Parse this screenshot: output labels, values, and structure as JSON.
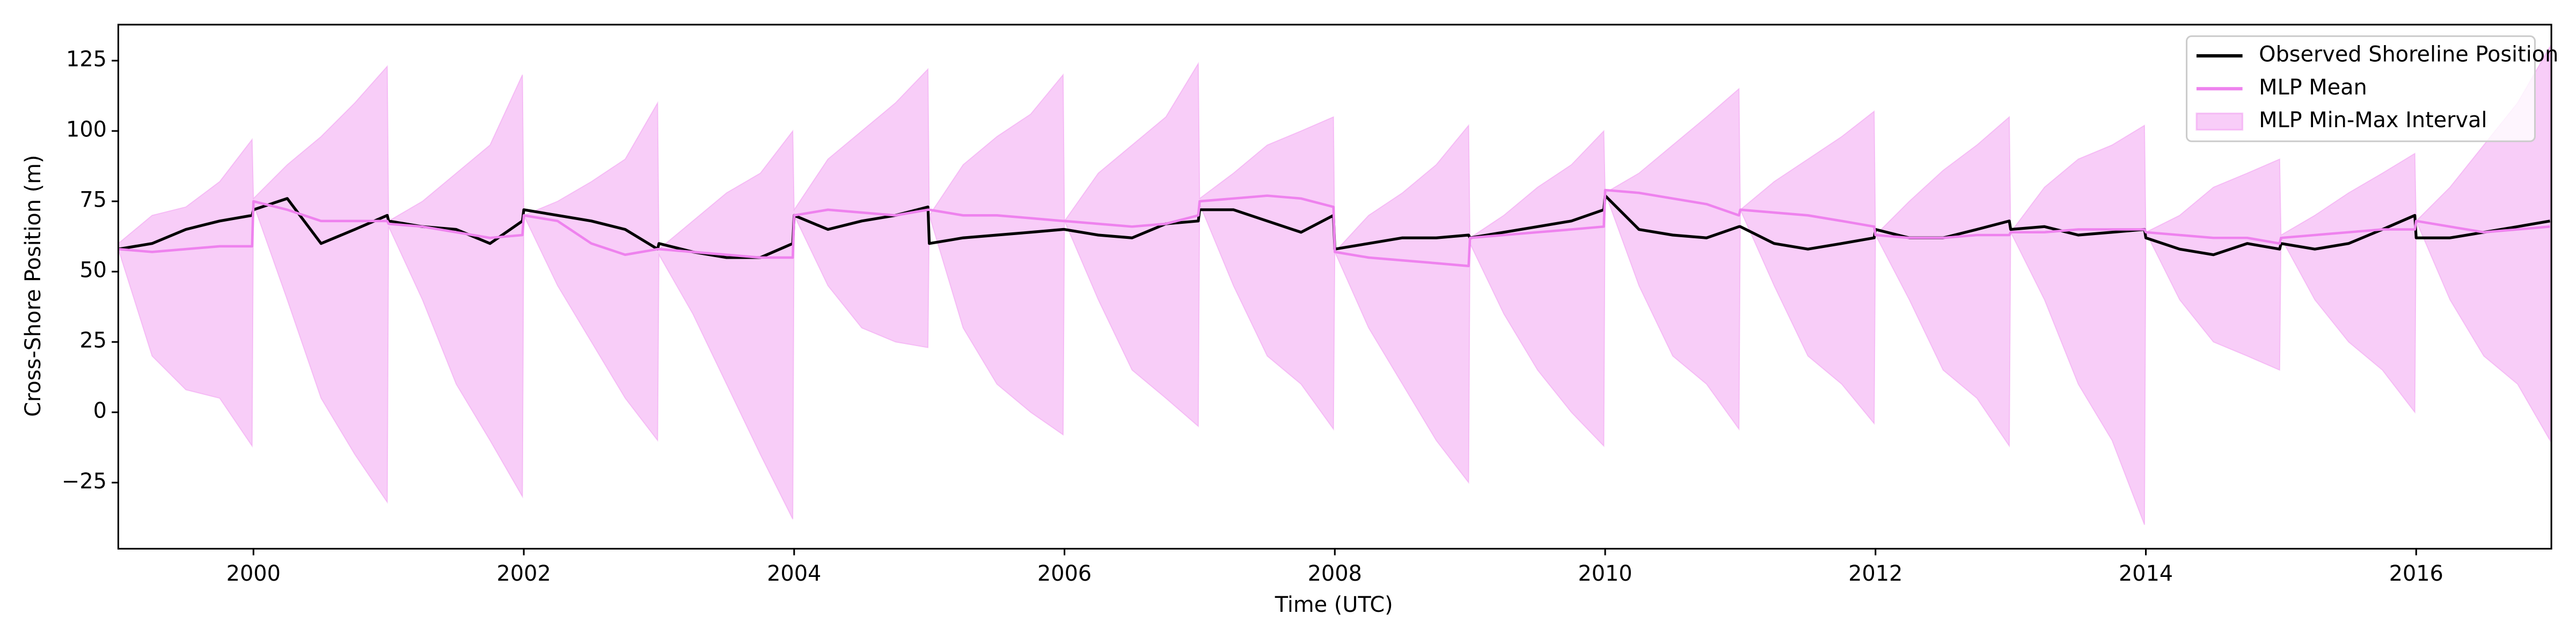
{
  "chart_data": {
    "type": "line",
    "x_label": "Time (UTC)",
    "y_label": "Cross-Shore Position (m)",
    "xlim": [
      1999.0,
      2017.0
    ],
    "ylim": [
      -48.5,
      137.8
    ],
    "xticks": [
      2000,
      2002,
      2004,
      2006,
      2008,
      2010,
      2012,
      2014,
      2016
    ],
    "yticks": [
      {
        "value": -25,
        "label": "−25"
      },
      0,
      25,
      50,
      75,
      100,
      125
    ],
    "legend": "upper right",
    "x": [
      1999,
      1999.25,
      1999.5,
      1999.75,
      1999.99,
      2000,
      2000.25,
      2000.5,
      2000.75,
      2000.99,
      2001,
      2001.25,
      2001.5,
      2001.75,
      2001.99,
      2002,
      2002.25,
      2002.5,
      2002.75,
      2002.99,
      2003,
      2003.25,
      2003.5,
      2003.75,
      2003.99,
      2004,
      2004.25,
      2004.5,
      2004.75,
      2004.99,
      2005,
      2005.25,
      2005.5,
      2005.75,
      2005.99,
      2006,
      2006.25,
      2006.5,
      2006.75,
      2006.99,
      2007,
      2007.25,
      2007.5,
      2007.75,
      2007.99,
      2008,
      2008.25,
      2008.5,
      2008.75,
      2008.99,
      2009,
      2009.25,
      2009.5,
      2009.75,
      2009.99,
      2010,
      2010.25,
      2010.5,
      2010.75,
      2010.99,
      2011,
      2011.25,
      2011.5,
      2011.75,
      2011.99,
      2012,
      2012.25,
      2012.5,
      2012.75,
      2012.99,
      2013,
      2013.25,
      2013.5,
      2013.75,
      2013.99,
      2014,
      2014.25,
      2014.5,
      2014.75,
      2014.99,
      2015,
      2015.25,
      2015.5,
      2015.75,
      2015.99,
      2016,
      2016.25,
      2016.5,
      2016.75,
      2016.99
    ],
    "series": [
      {
        "name": "Observed Shoreline Position",
        "color": "#000000",
        "kind": "line",
        "values": [
          58,
          60,
          65,
          68,
          70,
          72,
          76,
          60,
          65,
          70,
          68,
          66,
          65,
          60,
          68,
          72,
          70,
          68,
          65,
          58,
          60,
          57,
          55,
          55,
          60,
          70,
          65,
          68,
          70,
          73,
          60,
          62,
          63,
          64,
          65,
          65,
          63,
          62,
          67,
          68,
          72,
          72,
          68,
          64,
          70,
          58,
          60,
          62,
          62,
          63,
          62,
          64,
          66,
          68,
          72,
          77,
          65,
          63,
          62,
          66,
          66,
          60,
          58,
          60,
          62,
          65,
          62,
          62,
          65,
          68,
          65,
          66,
          63,
          64,
          65,
          62,
          58,
          56,
          60,
          58,
          60,
          58,
          60,
          65,
          70,
          62,
          62,
          64,
          66,
          68
        ]
      },
      {
        "name": "MLP Mean",
        "color": "#ee82ee",
        "kind": "line",
        "values": [
          58,
          57,
          58,
          59,
          59,
          75,
          72,
          68,
          68,
          68,
          67,
          66,
          64,
          62,
          63,
          70,
          68,
          60,
          56,
          58,
          58,
          57,
          56,
          55,
          55,
          70,
          72,
          71,
          70,
          72,
          72,
          70,
          70,
          69,
          68,
          68,
          67,
          66,
          67,
          70,
          75,
          76,
          77,
          76,
          73,
          57,
          55,
          54,
          53,
          52,
          62,
          63,
          64,
          65,
          66,
          79,
          78,
          76,
          74,
          70,
          72,
          71,
          70,
          68,
          66,
          63,
          62,
          62,
          63,
          63,
          64,
          64,
          65,
          65,
          65,
          64,
          63,
          62,
          62,
          60,
          62,
          63,
          64,
          65,
          65,
          68,
          66,
          64,
          65,
          66
        ]
      },
      {
        "name": "MLP Min-Max Interval",
        "color": "#ee82ee",
        "kind": "band",
        "lower": [
          58,
          20,
          8,
          5,
          -12,
          74,
          40,
          5,
          -15,
          -32,
          66,
          40,
          10,
          -10,
          -30,
          70,
          45,
          25,
          5,
          -10,
          56,
          35,
          10,
          -15,
          -38,
          70,
          45,
          30,
          25,
          23,
          70,
          30,
          10,
          0,
          -8,
          68,
          40,
          15,
          5,
          -5,
          74,
          45,
          20,
          10,
          -6,
          57,
          30,
          10,
          -10,
          -25,
          60,
          35,
          15,
          0,
          -12,
          78,
          45,
          20,
          10,
          -6,
          72,
          45,
          20,
          10,
          -4,
          63,
          40,
          15,
          5,
          -12,
          64,
          40,
          10,
          -10,
          -40,
          64,
          40,
          25,
          20,
          15,
          62,
          40,
          25,
          15,
          0,
          68,
          40,
          20,
          10,
          -10
        ],
        "upper": [
          60,
          70,
          73,
          82,
          97,
          76,
          88,
          98,
          110,
          123,
          68,
          75,
          85,
          95,
          120,
          70,
          75,
          82,
          90,
          110,
          58,
          68,
          78,
          85,
          100,
          72,
          90,
          100,
          110,
          122,
          70,
          88,
          98,
          106,
          120,
          68,
          85,
          95,
          105,
          124,
          76,
          85,
          95,
          100,
          105,
          57,
          70,
          78,
          88,
          102,
          62,
          70,
          80,
          88,
          100,
          78,
          85,
          95,
          105,
          115,
          72,
          82,
          90,
          98,
          107,
          63,
          75,
          86,
          95,
          105,
          64,
          80,
          90,
          95,
          102,
          64,
          70,
          80,
          85,
          90,
          63,
          70,
          78,
          85,
          92,
          68,
          80,
          95,
          110,
          130
        ]
      }
    ]
  }
}
